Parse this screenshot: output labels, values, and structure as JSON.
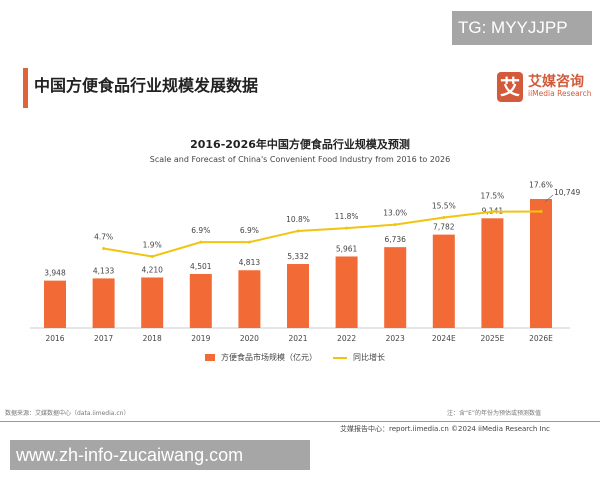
{
  "watermark_top": "TG: MYYJJPP",
  "page_title": "中国方便食品行业规模发展数据",
  "logo": {
    "cn": "艾媒咨询",
    "en": "iiMedia Research",
    "mark": "艾"
  },
  "chart_data": {
    "type": "bar+line",
    "title": "2016-2026年中国方便食品行业规模及预测",
    "subtitle": "Scale and Forecast of China's Convenient Food Industry from 2016 to 2026",
    "categories": [
      "2016",
      "2017",
      "2018",
      "2019",
      "2020",
      "2021",
      "2022",
      "2023",
      "2024E",
      "2025E",
      "2026E"
    ],
    "series": [
      {
        "name": "方便食品市场规模（亿元）",
        "type": "bar",
        "color": "#f26b36",
        "values": [
          3948,
          4133,
          4210,
          4501,
          4813,
          5332,
          5961,
          6736,
          7782,
          9141,
          10749
        ],
        "labels": [
          "3,948",
          "4,133",
          "4,210",
          "4,501",
          "4,813",
          "5,332",
          "5,961",
          "6,736",
          "7,782",
          "9,141",
          "10,749"
        ]
      },
      {
        "name": "同比增长",
        "type": "line",
        "color": "#f1c40f",
        "values": [
          null,
          4.7,
          1.9,
          6.9,
          6.9,
          10.8,
          11.8,
          13.0,
          15.5,
          17.5,
          17.6
        ],
        "labels": [
          "",
          "4.7%",
          "1.9%",
          "6.9%",
          "6.9%",
          "10.8%",
          "11.8%",
          "13.0%",
          "15.5%",
          "17.5%",
          "17.6%"
        ]
      }
    ],
    "legend_position": "bottom",
    "grid": false
  },
  "source": "数据来源：艾媒数据中心（data.iimedia.cn）",
  "note": "注：含“E”的年份为预估或预测数值",
  "footer": "艾媒报告中心：report.iimedia.cn    ©2024  iiMedia Research Inc",
  "watermark_bottom": "www.zh-info-zucaiwang.com"
}
